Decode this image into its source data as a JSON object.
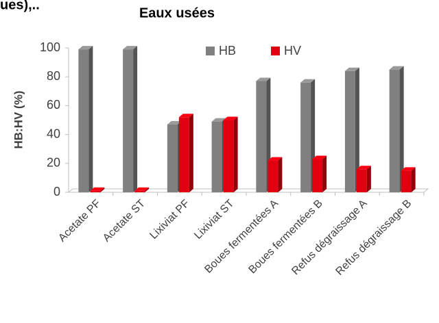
{
  "chart_data": {
    "type": "bar3d",
    "header_fragment": "ues),..",
    "title": "Eaux usées",
    "y_label": "HB:HV (%)",
    "categories": [
      "Acetate PF",
      "Acetate ST",
      "Lixiviat PF",
      "Lixiviat ST",
      "Boues fermentées A",
      "Boues fermentées B",
      "Refus dégraissage A",
      "Refus dégraissage B"
    ],
    "series": [
      {
        "name": "HB",
        "color": "#808080",
        "values": [
          99,
          99,
          47,
          49,
          77,
          76,
          84,
          85
        ]
      },
      {
        "name": "HV",
        "color": "#e00010",
        "values": [
          1,
          1,
          52,
          50,
          22,
          23,
          16,
          15
        ]
      }
    ],
    "ylim": [
      0,
      100
    ],
    "yticks": [
      0,
      20,
      40,
      60,
      80,
      100
    ],
    "grid": false,
    "legend": "top"
  }
}
